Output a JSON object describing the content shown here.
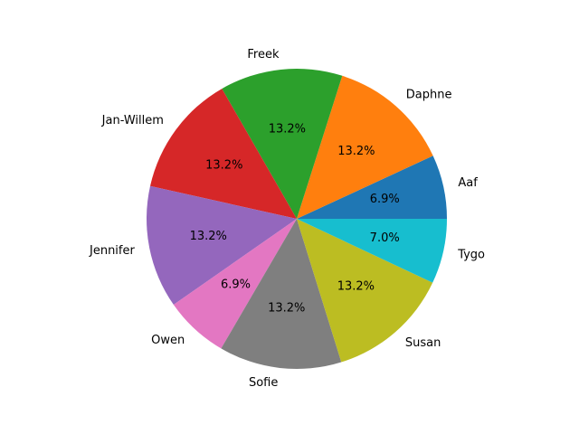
{
  "chart_data": {
    "type": "pie",
    "title": "",
    "start_angle_deg": 0,
    "direction": "counterclockwise",
    "slices": [
      {
        "label": "Aaf",
        "value": 6.9,
        "pct_label": "6.9%",
        "color": "#1f77b4"
      },
      {
        "label": "Daphne",
        "value": 13.2,
        "pct_label": "13.2%",
        "color": "#ff7f0e"
      },
      {
        "label": "Freek",
        "value": 13.2,
        "pct_label": "13.2%",
        "color": "#2ca02c"
      },
      {
        "label": "Jan-Willem",
        "value": 13.2,
        "pct_label": "13.2%",
        "color": "#d62728"
      },
      {
        "label": "Jennifer",
        "value": 13.2,
        "pct_label": "13.2%",
        "color": "#9467bd"
      },
      {
        "label": "Owen",
        "value": 6.9,
        "pct_label": "6.9%",
        "color": "#e377c2"
      },
      {
        "label": "Sofie",
        "value": 13.2,
        "pct_label": "13.2%",
        "color": "#7f7f7f"
      },
      {
        "label": "Susan",
        "value": 13.2,
        "pct_label": "13.2%",
        "color": "#bcbd22"
      },
      {
        "label": "Tygo",
        "value": 7.0,
        "pct_label": "7.0%",
        "color": "#17becf"
      }
    ]
  }
}
